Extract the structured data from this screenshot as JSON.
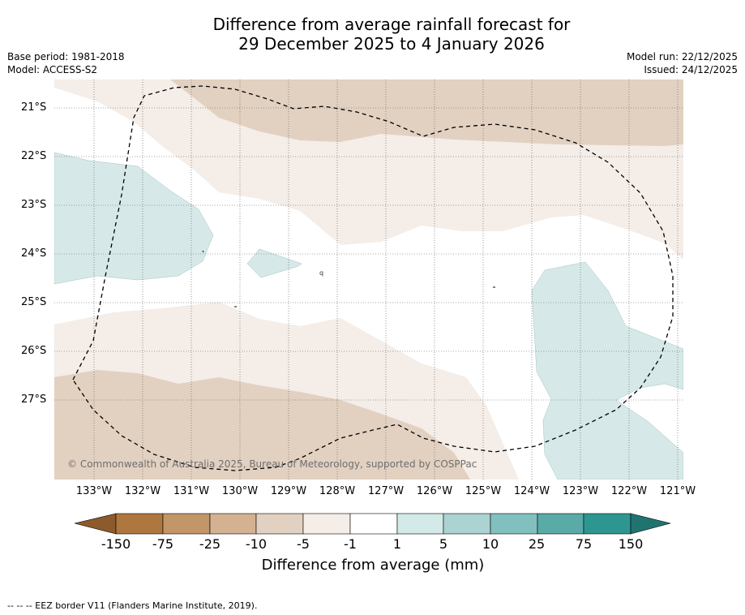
{
  "title": {
    "line1": "Difference from average rainfall forecast for",
    "line2": "29 December 2025 to 4 January 2026"
  },
  "meta_left": {
    "base_period": "Base period: 1981-2018",
    "model": "Model: ACCESS-S2"
  },
  "meta_right": {
    "model_run": "Model run: 22/12/2025",
    "issued": "Issued: 24/12/2025"
  },
  "map": {
    "latitude_labels": [
      "21°S",
      "22°S",
      "23°S",
      "24°S",
      "25°S",
      "26°S",
      "27°S"
    ],
    "longitude_labels": [
      "133°W",
      "132°W",
      "131°W",
      "130°W",
      "129°W",
      "128°W",
      "127°W",
      "126°W",
      "125°W",
      "124°W",
      "123°W",
      "122°W",
      "121°W"
    ],
    "copyright": "© Commonwealth of Australia 2025, Bureau of Meteorology, supported by COSPPac",
    "colors": {
      "minus_10_to_minus_5": "#e2d1c1",
      "minus_5_to_minus_1": "#f4ede8",
      "plus_1_to_5": "#d6e9e8",
      "boundary": "#000000"
    }
  },
  "colorbar": {
    "tick_labels": [
      "-150",
      "-75",
      "-25",
      "-10",
      "-5",
      "-1",
      "1",
      "5",
      "10",
      "25",
      "75",
      "150"
    ],
    "colors": [
      "#8d5a2b",
      "#ae7740",
      "#c29669",
      "#d4b291",
      "#e2d1c1",
      "#f4ede8",
      "#ffffff",
      "#d4eae8",
      "#aad3d2",
      "#81c0be",
      "#5aaaa8",
      "#2e9691",
      "#1f7470"
    ],
    "title": "Difference from average (mm)"
  },
  "footnote": "--  --  -- EEZ border V11 (Flanders Marine Institute, 2019)."
}
